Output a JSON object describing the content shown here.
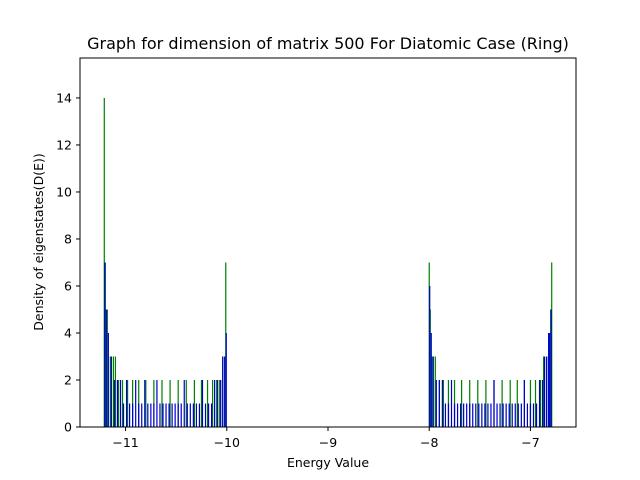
{
  "chart_data": {
    "type": "bar",
    "title": "Graph for dimension of matrix 500 For Diatomic Case (Ring)",
    "xlabel": "Energy Value",
    "ylabel": "Density of eigenstates(D(E))",
    "xlim": [
      -11.45,
      -6.55
    ],
    "ylim": [
      0,
      15.7
    ],
    "xticks": [
      -11,
      -10,
      -9,
      -8,
      -7
    ],
    "xtick_labels": [
      "−11",
      "−10",
      "−9",
      "−8",
      "−7"
    ],
    "yticks": [
      0,
      2,
      4,
      6,
      8,
      10,
      12,
      14
    ],
    "ytick_labels": [
      "0",
      "2",
      "4",
      "6",
      "8",
      "10",
      "12",
      "14"
    ],
    "grid": false,
    "series": [
      {
        "color": "#008000",
        "bar_width": 0.012,
        "x": [
          -11.21,
          -11.2,
          -11.18,
          -11.15,
          -11.12,
          -11.1,
          -11.07,
          -11.03,
          -10.98,
          -10.93,
          -10.87,
          -10.8,
          -10.72,
          -10.64,
          -10.56,
          -10.48,
          -10.4,
          -10.32,
          -10.25,
          -10.19,
          -10.14,
          -10.1,
          -10.07,
          -10.04,
          -10.02,
          -10.01,
          -8.0,
          -7.99,
          -7.97,
          -7.94,
          -7.9,
          -7.86,
          -7.81,
          -7.75,
          -7.68,
          -7.6,
          -7.52,
          -7.44,
          -7.36,
          -7.28,
          -7.2,
          -7.13,
          -7.06,
          -7.0,
          -6.95,
          -6.9,
          -6.87,
          -6.84,
          -6.82,
          -6.8,
          -6.79
        ],
        "values": [
          14,
          7,
          5,
          3,
          3,
          3,
          2,
          2,
          2,
          2,
          2,
          2,
          2,
          2,
          2,
          2,
          2,
          2,
          2,
          2,
          2,
          2,
          2,
          3,
          3,
          7,
          7,
          5,
          3,
          3,
          2,
          2,
          2,
          2,
          2,
          2,
          2,
          2,
          2,
          2,
          2,
          2,
          2,
          2,
          2,
          2,
          3,
          3,
          4,
          5,
          7
        ]
      },
      {
        "color": "#0000cd",
        "bar_width": 0.012,
        "x": [
          -11.205,
          -11.19,
          -11.17,
          -11.14,
          -11.11,
          -11.08,
          -11.05,
          -11.02,
          -10.99,
          -10.96,
          -10.93,
          -10.9,
          -10.87,
          -10.84,
          -10.81,
          -10.78,
          -10.75,
          -10.72,
          -10.69,
          -10.66,
          -10.63,
          -10.6,
          -10.57,
          -10.54,
          -10.51,
          -10.48,
          -10.45,
          -10.42,
          -10.39,
          -10.36,
          -10.33,
          -10.3,
          -10.27,
          -10.24,
          -10.21,
          -10.18,
          -10.15,
          -10.12,
          -10.09,
          -10.06,
          -10.04,
          -10.02,
          -10.005,
          -7.995,
          -7.98,
          -7.96,
          -7.93,
          -7.9,
          -7.87,
          -7.84,
          -7.81,
          -7.78,
          -7.75,
          -7.72,
          -7.69,
          -7.66,
          -7.63,
          -7.6,
          -7.57,
          -7.54,
          -7.51,
          -7.48,
          -7.45,
          -7.42,
          -7.39,
          -7.36,
          -7.33,
          -7.3,
          -7.27,
          -7.24,
          -7.21,
          -7.18,
          -7.15,
          -7.12,
          -7.09,
          -7.06,
          -7.03,
          -7.0,
          -6.97,
          -6.94,
          -6.91,
          -6.88,
          -6.86,
          -6.84,
          -6.82,
          -6.81,
          -6.795
        ],
        "values": [
          7,
          5,
          4,
          3,
          2,
          2,
          2,
          1,
          2,
          1,
          1,
          2,
          1,
          1,
          2,
          1,
          1,
          1,
          2,
          1,
          1,
          1,
          1,
          1,
          1,
          1,
          1,
          2,
          1,
          1,
          1,
          1,
          1,
          2,
          1,
          1,
          1,
          2,
          2,
          2,
          3,
          3,
          4,
          6,
          4,
          3,
          2,
          2,
          2,
          1,
          1,
          2,
          1,
          1,
          1,
          1,
          1,
          1,
          1,
          1,
          1,
          1,
          1,
          1,
          1,
          2,
          1,
          1,
          1,
          1,
          1,
          1,
          1,
          1,
          1,
          2,
          1,
          1,
          1,
          1,
          2,
          2,
          3,
          3,
          4,
          4,
          5
        ]
      }
    ]
  }
}
